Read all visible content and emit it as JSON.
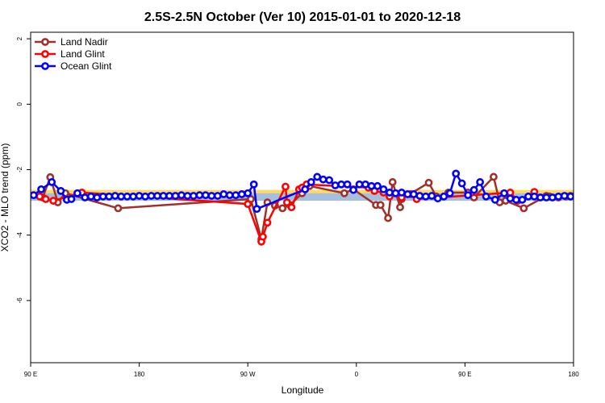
{
  "chart_data": {
    "type": "line",
    "title": "2.5S-2.5N October (Ver 10)   2015-01-01 to 2020-12-18",
    "xlabel": "Longitude",
    "ylabel": "XCO2 - MLO trend (ppm)",
    "xlim": [
      0,
      360
    ],
    "ylim": [
      -7.9,
      2.2
    ],
    "x_ticks": [
      {
        "value": 0,
        "label": "90 E"
      },
      {
        "value": 72,
        "label": "180"
      },
      {
        "value": 144,
        "label": "90 W"
      },
      {
        "value": 216,
        "label": "0"
      },
      {
        "value": 288,
        "label": "90 E"
      },
      {
        "value": 360,
        "label": "180"
      }
    ],
    "y_ticks": [
      {
        "value": 2,
        "label": "2"
      },
      {
        "value": 0,
        "label": "0"
      },
      {
        "value": -2,
        "label": "-2"
      },
      {
        "value": -4,
        "label": "-4"
      },
      {
        "value": -6,
        "label": "-6"
      }
    ],
    "legend_position": "top-left",
    "grid": false,
    "bands": [
      {
        "color": "#ffd966",
        "xmin": 0,
        "xmax": 360,
        "ymin": -2.92,
        "ymax": -2.62
      },
      {
        "color": "#a7bfdf",
        "xmin": 0,
        "xmax": 360,
        "ymin": -2.95,
        "ymax": -2.72
      }
    ],
    "series": [
      {
        "name": "Land Nadir",
        "color": "#a0302a",
        "x": [
          8,
          13,
          18,
          23,
          58,
          146,
          153,
          157,
          162,
          167,
          172,
          180,
          185,
          208,
          214,
          229,
          232,
          237,
          240,
          245,
          246,
          264,
          269,
          274,
          277,
          290,
          294,
          307,
          311,
          315,
          327,
          342,
          344,
          350,
          355,
          358
        ],
        "y": [
          -2.85,
          -2.23,
          -3.0,
          -2.72,
          -3.18,
          -2.9,
          -4.12,
          -3.0,
          -3.1,
          -3.18,
          -3.08,
          -2.72,
          -2.5,
          -2.72,
          -2.6,
          -3.08,
          -3.08,
          -3.48,
          -2.38,
          -3.15,
          -2.9,
          -2.4,
          -2.82,
          -2.82,
          -2.7,
          -2.7,
          -2.85,
          -2.22,
          -3.0,
          -2.95,
          -3.18,
          -2.8,
          -2.82,
          -2.85,
          -2.82,
          -2.8
        ]
      },
      {
        "name": "Land Glint",
        "color": "#ff0000",
        "x": [
          6,
          10,
          15,
          34,
          144,
          153,
          154,
          157,
          169,
          170,
          173,
          178,
          180,
          183,
          224,
          228,
          234,
          238,
          242,
          246,
          252,
          256,
          318,
          323,
          334
        ],
        "y": [
          -2.82,
          -2.9,
          -2.95,
          -2.7,
          -3.05,
          -4.2,
          -4.05,
          -3.62,
          -2.52,
          -3.0,
          -3.15,
          -2.6,
          -2.55,
          -2.45,
          -2.55,
          -2.65,
          -2.7,
          -2.82,
          -2.72,
          -2.85,
          -2.75,
          -2.9,
          -2.7,
          -2.95,
          -2.68
        ]
      },
      {
        "name": "Ocean Glint",
        "color": "#0000ff",
        "x": [
          2,
          7,
          14,
          20,
          24,
          27,
          31,
          36,
          40,
          44,
          48,
          52,
          56,
          60,
          64,
          68,
          72,
          76,
          80,
          84,
          88,
          92,
          96,
          100,
          104,
          108,
          112,
          116,
          120,
          124,
          128,
          132,
          136,
          140,
          144,
          148,
          150,
          182,
          186,
          190,
          194,
          198,
          202,
          206,
          210,
          214,
          218,
          222,
          226,
          230,
          234,
          238,
          242,
          246,
          250,
          254,
          258,
          262,
          266,
          270,
          274,
          278,
          282,
          286,
          290,
          294,
          298,
          302,
          308,
          314,
          318,
          322,
          326,
          330,
          334,
          338,
          342,
          346,
          350,
          354,
          358,
          362,
          366
        ],
        "y": [
          -2.78,
          -2.6,
          -2.38,
          -2.65,
          -2.92,
          -2.9,
          -2.72,
          -2.85,
          -2.82,
          -2.85,
          -2.82,
          -2.82,
          -2.8,
          -2.82,
          -2.82,
          -2.82,
          -2.8,
          -2.82,
          -2.8,
          -2.8,
          -2.8,
          -2.8,
          -2.8,
          -2.78,
          -2.8,
          -2.8,
          -2.78,
          -2.78,
          -2.8,
          -2.8,
          -2.75,
          -2.78,
          -2.78,
          -2.75,
          -2.72,
          -2.45,
          -3.2,
          -2.6,
          -2.38,
          -2.22,
          -2.3,
          -2.32,
          -2.48,
          -2.45,
          -2.45,
          -2.62,
          -2.45,
          -2.45,
          -2.5,
          -2.5,
          -2.6,
          -2.7,
          -2.72,
          -2.7,
          -2.75,
          -2.75,
          -2.8,
          -2.82,
          -2.8,
          -2.88,
          -2.82,
          -2.72,
          -2.12,
          -2.42,
          -2.78,
          -2.62,
          -2.38,
          -2.82,
          -2.92,
          -2.72,
          -2.88,
          -2.92,
          -2.92,
          -2.82,
          -2.82,
          -2.85,
          -2.85,
          -2.85,
          -2.82,
          -2.8,
          -2.82,
          -2.85,
          -2.82
        ]
      }
    ]
  }
}
